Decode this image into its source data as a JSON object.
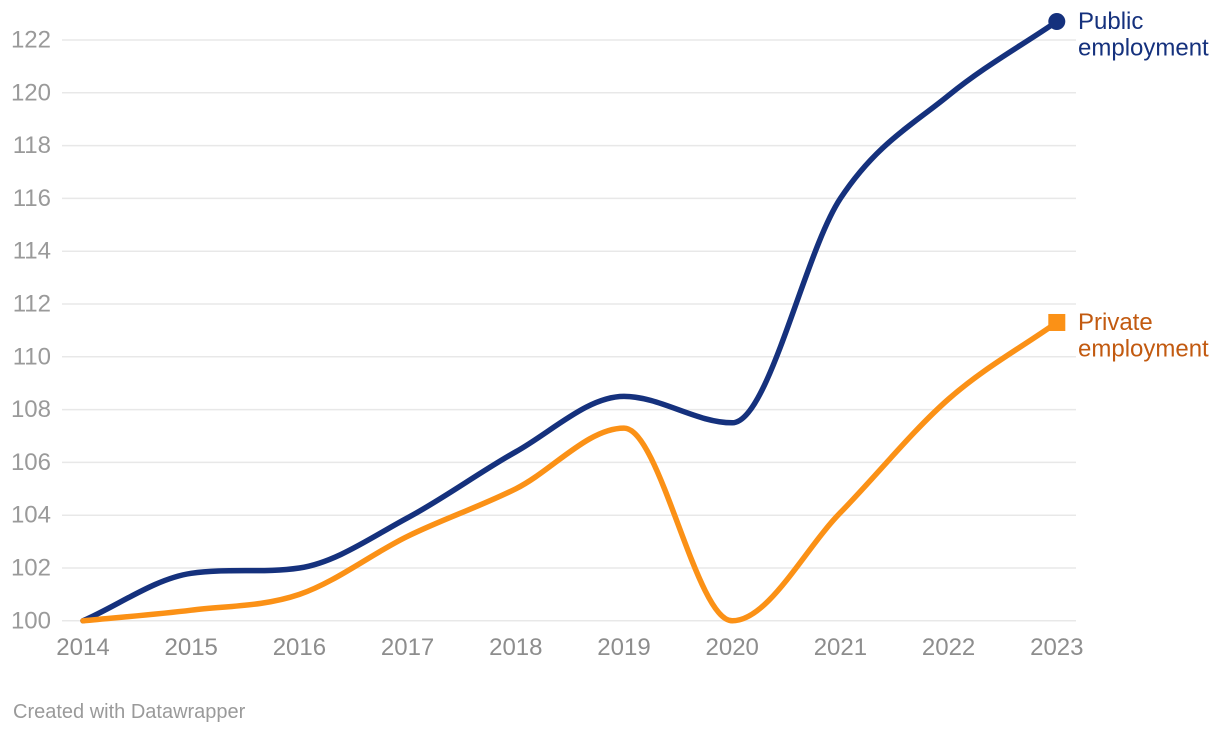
{
  "chart_data": {
    "type": "line",
    "x_label": "",
    "y_label": "",
    "x": [
      2014,
      2015,
      2016,
      2017,
      2018,
      2019,
      2020,
      2021,
      2022,
      2023
    ],
    "series": [
      {
        "name": "Public employment",
        "label_lines": [
          "Public",
          "employment"
        ],
        "color": "#15317d",
        "label_color": "#15317d",
        "marker": "circle",
        "values": [
          100,
          101.8,
          102.0,
          103.9,
          106.4,
          108.5,
          107.5,
          116.0,
          119.9,
          122.7
        ]
      },
      {
        "name": "Private employment",
        "label_lines": [
          "Private",
          "employment"
        ],
        "color": "#fb9116",
        "label_color": "#c25a10",
        "marker": "square",
        "values": [
          100,
          100.4,
          101.0,
          103.2,
          105.0,
          107.3,
          100.0,
          104.1,
          108.4,
          111.3
        ]
      }
    ],
    "ylim": [
      100,
      122
    ],
    "ytick_step": 2,
    "yticks": [
      100,
      102,
      104,
      106,
      108,
      110,
      112,
      114,
      116,
      118,
      120,
      122
    ],
    "xticks": [
      2014,
      2015,
      2016,
      2017,
      2018,
      2019,
      2020,
      2021,
      2022,
      2023
    ],
    "grid": "horizontal",
    "gridline_color": "#e8e8e8",
    "curve": "monotone",
    "legend_position": "end-of-line"
  },
  "footer": {
    "attribution": "Created with Datawrapper"
  }
}
